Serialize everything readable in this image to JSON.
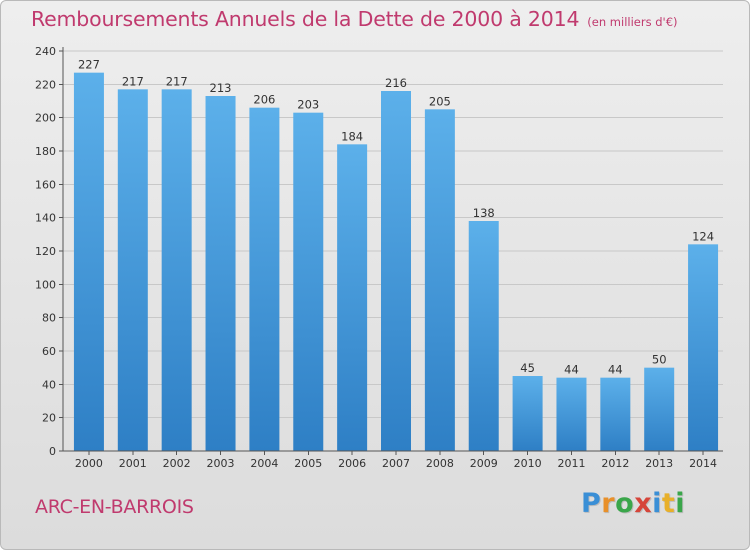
{
  "header": {
    "title": "Remboursements Annuels de la Dette de 2000 à 2014",
    "subtitle": "(en milliers d'€)"
  },
  "footer": {
    "location": "ARC-EN-BARROIS"
  },
  "logo": {
    "text": "Proxiti",
    "letters": [
      {
        "char": "P",
        "color": "#3a8fd6"
      },
      {
        "char": "r",
        "color": "#e8902a"
      },
      {
        "char": "o",
        "color": "#3aa64a"
      },
      {
        "char": "x",
        "color": "#d6453a"
      },
      {
        "char": "i",
        "color": "#3a8fd6"
      },
      {
        "char": "t",
        "color": "#e8b02a"
      },
      {
        "char": "i",
        "color": "#3aa64a"
      }
    ]
  },
  "colors": {
    "bar_light": "#5cb0ea",
    "bar_dark": "#2e7fc5",
    "title": "#c03a6e",
    "grid": "#c8c8c8",
    "axis": "#555555"
  },
  "chart_data": {
    "type": "bar",
    "categories": [
      "2000",
      "2001",
      "2002",
      "2003",
      "2004",
      "2005",
      "2006",
      "2007",
      "2008",
      "2009",
      "2010",
      "2011",
      "2012",
      "2013",
      "2014"
    ],
    "values": [
      227,
      217,
      217,
      213,
      206,
      203,
      184,
      216,
      205,
      138,
      45,
      44,
      44,
      50,
      124
    ],
    "ylim": [
      0,
      240
    ],
    "yticks": [
      0,
      20,
      40,
      60,
      80,
      100,
      120,
      140,
      160,
      180,
      200,
      220,
      240
    ],
    "grid": true,
    "data_labels": true
  }
}
